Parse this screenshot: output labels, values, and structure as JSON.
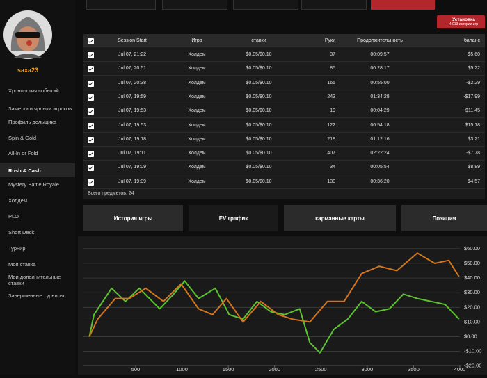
{
  "sidebar": {
    "username": "saxa23",
    "menu": [
      "Хронология событий",
      "Заметки и ярлыки игроков",
      "Профиль дольщика",
      "Spin & Gold",
      "All-In or Fold",
      "Rush & Cash",
      "Mystery Battle Royale",
      "Холдем",
      "PLO",
      "Short Deck",
      "Турнир",
      "Моя ставка",
      "Мои дополнительные ставки",
      "Завершенные турниры"
    ]
  },
  "install_button": {
    "title": "Установка",
    "subtitle": "4,013 истории игр"
  },
  "table": {
    "headers": [
      "Session Start",
      "Игра",
      "ставки",
      "Руки",
      "Продолжительность",
      "баланс"
    ],
    "rows": [
      [
        "Jul 07, 21:22",
        "Холдем",
        "$0.05/$0.10",
        "37",
        "00:09:57",
        "-$5.60"
      ],
      [
        "Jul 07, 20:51",
        "Холдем",
        "$0.05/$0.10",
        "85",
        "00:28:17",
        "$5.22"
      ],
      [
        "Jul 07, 20:38",
        "Холдем",
        "$0.05/$0.10",
        "165",
        "00:55:00",
        "-$2.29"
      ],
      [
        "Jul 07, 19:59",
        "Холдем",
        "$0.05/$0.10",
        "243",
        "01:34:28",
        "-$17.99"
      ],
      [
        "Jul 07, 19:53",
        "Холдем",
        "$0.05/$0.10",
        "19",
        "00:04:29",
        "$11.45"
      ],
      [
        "Jul 07, 19:53",
        "Холдем",
        "$0.05/$0.10",
        "122",
        "00:54:18",
        "$15.18"
      ],
      [
        "Jul 07, 19:18",
        "Холдем",
        "$0.05/$0.10",
        "218",
        "01:12:16",
        "$3.21"
      ],
      [
        "Jul 07, 19:11",
        "Холдем",
        "$0.05/$0.10",
        "407",
        "02:22:24",
        "-$7.78"
      ],
      [
        "Jul 07, 19:09",
        "Холдем",
        "$0.05/$0.10",
        "34",
        "00:05:54",
        "$8.89"
      ],
      [
        "Jul 07, 19:09",
        "Холдем",
        "$0.05/$0.10",
        "130",
        "00:36:20",
        "$4.57"
      ]
    ],
    "footer": "Всего предметов: 24"
  },
  "tabs": [
    "История игры",
    "EV график",
    "карманные карты",
    "Позиция"
  ],
  "chart_data": {
    "type": "line",
    "series": [
      {
        "color": "#5cc22e",
        "x": [
          0,
          50,
          240,
          390,
          540,
          760,
          910,
          1030,
          1180,
          1360,
          1510,
          1660,
          1810,
          1960,
          2110,
          2270,
          2380,
          2490,
          2640,
          2790,
          2940,
          3090,
          3240,
          3390,
          3540,
          3690,
          3840,
          3990
        ],
        "values": [
          0,
          15,
          33,
          24,
          33,
          19,
          29,
          38,
          26,
          33,
          15,
          12,
          24,
          17,
          15,
          19,
          -4,
          -11,
          5,
          12,
          24,
          17,
          19,
          29,
          26,
          24,
          22,
          12
        ]
      },
      {
        "color": "#d3761e",
        "x": [
          0,
          90,
          280,
          430,
          610,
          800,
          990,
          1180,
          1330,
          1480,
          1660,
          1850,
          2040,
          2190,
          2380,
          2570,
          2750,
          2940,
          3130,
          3320,
          3540,
          3730,
          3880,
          3990
        ],
        "values": [
          0,
          12,
          26,
          26,
          33,
          24,
          36,
          19,
          15,
          26,
          10,
          24,
          15,
          12,
          10,
          24,
          24,
          43,
          48,
          45,
          57,
          50,
          52,
          41
        ]
      }
    ],
    "xlim": [
      0,
      4000
    ],
    "ylim": [
      -20,
      65
    ],
    "xticks": [
      500,
      1000,
      1500,
      2000,
      2500,
      3000,
      3500,
      4000
    ],
    "yticks": [
      {
        "value": -20,
        "label": "-$20.00"
      },
      {
        "value": -10,
        "label": "-$10.00"
      },
      {
        "value": 0,
        "label": "$0.00"
      },
      {
        "value": 10,
        "label": "$10.00"
      },
      {
        "value": 20,
        "label": "$20.00"
      },
      {
        "value": 30,
        "label": "$30.00"
      },
      {
        "value": 40,
        "label": "$40.00"
      },
      {
        "value": 50,
        "label": "$50.00"
      },
      {
        "value": 60,
        "label": "$60.00"
      }
    ],
    "grid": true
  }
}
